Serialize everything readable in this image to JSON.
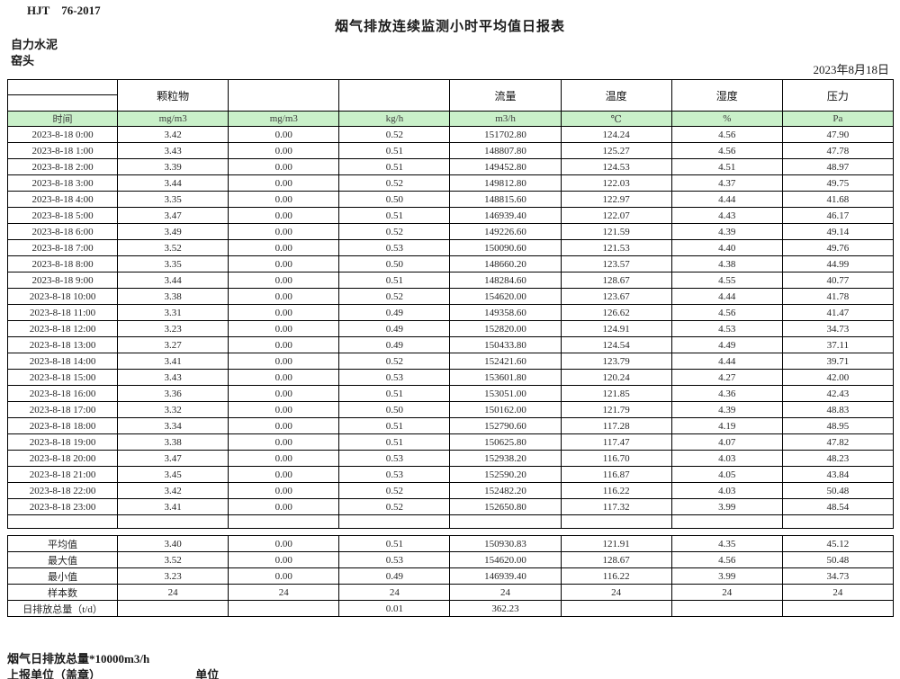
{
  "page": {
    "doc_code": "HJT 76-2017",
    "title": "烟气排放连续监测小时平均值日报表",
    "company": "自力水泥",
    "location": "窑头",
    "date": "2023年8月18日"
  },
  "colors": {
    "header_fill": "#c9f0c9",
    "border": "#000000"
  },
  "table": {
    "group_headers": [
      "",
      "颗粒物",
      "",
      "",
      "流量",
      "温度",
      "湿度",
      "压力"
    ],
    "units": [
      "时间",
      "mg/m3",
      "mg/m3",
      "kg/h",
      "m3/h",
      "℃",
      "%",
      "Pa"
    ],
    "rows": [
      [
        "2023-8-18 0:00",
        "3.42",
        "0.00",
        "0.52",
        "151702.80",
        "124.24",
        "4.56",
        "47.90"
      ],
      [
        "2023-8-18 1:00",
        "3.43",
        "0.00",
        "0.51",
        "148807.80",
        "125.27",
        "4.56",
        "47.78"
      ],
      [
        "2023-8-18 2:00",
        "3.39",
        "0.00",
        "0.51",
        "149452.80",
        "124.53",
        "4.51",
        "48.97"
      ],
      [
        "2023-8-18 3:00",
        "3.44",
        "0.00",
        "0.52",
        "149812.80",
        "122.03",
        "4.37",
        "49.75"
      ],
      [
        "2023-8-18 4:00",
        "3.35",
        "0.00",
        "0.50",
        "148815.60",
        "122.97",
        "4.44",
        "41.68"
      ],
      [
        "2023-8-18 5:00",
        "3.47",
        "0.00",
        "0.51",
        "146939.40",
        "122.07",
        "4.43",
        "46.17"
      ],
      [
        "2023-8-18 6:00",
        "3.49",
        "0.00",
        "0.52",
        "149226.60",
        "121.59",
        "4.39",
        "49.14"
      ],
      [
        "2023-8-18 7:00",
        "3.52",
        "0.00",
        "0.53",
        "150090.60",
        "121.53",
        "4.40",
        "49.76"
      ],
      [
        "2023-8-18 8:00",
        "3.35",
        "0.00",
        "0.50",
        "148660.20",
        "123.57",
        "4.38",
        "44.99"
      ],
      [
        "2023-8-18 9:00",
        "3.44",
        "0.00",
        "0.51",
        "148284.60",
        "128.67",
        "4.55",
        "40.77"
      ],
      [
        "2023-8-18 10:00",
        "3.38",
        "0.00",
        "0.52",
        "154620.00",
        "123.67",
        "4.44",
        "41.78"
      ],
      [
        "2023-8-18 11:00",
        "3.31",
        "0.00",
        "0.49",
        "149358.60",
        "126.62",
        "4.56",
        "41.47"
      ],
      [
        "2023-8-18 12:00",
        "3.23",
        "0.00",
        "0.49",
        "152820.00",
        "124.91",
        "4.53",
        "34.73"
      ],
      [
        "2023-8-18 13:00",
        "3.27",
        "0.00",
        "0.49",
        "150433.80",
        "124.54",
        "4.49",
        "37.11"
      ],
      [
        "2023-8-18 14:00",
        "3.41",
        "0.00",
        "0.52",
        "152421.60",
        "123.79",
        "4.44",
        "39.71"
      ],
      [
        "2023-8-18 15:00",
        "3.43",
        "0.00",
        "0.53",
        "153601.80",
        "120.24",
        "4.27",
        "42.00"
      ],
      [
        "2023-8-18 16:00",
        "3.36",
        "0.00",
        "0.51",
        "153051.00",
        "121.85",
        "4.36",
        "42.43"
      ],
      [
        "2023-8-18 17:00",
        "3.32",
        "0.00",
        "0.50",
        "150162.00",
        "121.79",
        "4.39",
        "48.83"
      ],
      [
        "2023-8-18 18:00",
        "3.34",
        "0.00",
        "0.51",
        "152790.60",
        "117.28",
        "4.19",
        "48.95"
      ],
      [
        "2023-8-18 19:00",
        "3.38",
        "0.00",
        "0.51",
        "150625.80",
        "117.47",
        "4.07",
        "47.82"
      ],
      [
        "2023-8-18 20:00",
        "3.47",
        "0.00",
        "0.53",
        "152938.20",
        "116.70",
        "4.03",
        "48.23"
      ],
      [
        "2023-8-18 21:00",
        "3.45",
        "0.00",
        "0.53",
        "152590.20",
        "116.87",
        "4.05",
        "43.84"
      ],
      [
        "2023-8-18 22:00",
        "3.42",
        "0.00",
        "0.52",
        "152482.20",
        "116.22",
        "4.03",
        "50.48"
      ],
      [
        "2023-8-18 23:00",
        "3.41",
        "0.00",
        "0.52",
        "152650.80",
        "117.32",
        "3.99",
        "48.54"
      ]
    ],
    "summary_rows": [
      [
        "平均值",
        "3.40",
        "0.00",
        "0.51",
        "150930.83",
        "121.91",
        "4.35",
        "45.12"
      ],
      [
        "最大值",
        "3.52",
        "0.00",
        "0.53",
        "154620.00",
        "128.67",
        "4.56",
        "50.48"
      ],
      [
        "最小值",
        "3.23",
        "0.00",
        "0.49",
        "146939.40",
        "116.22",
        "3.99",
        "34.73"
      ],
      [
        "样本数",
        "24",
        "24",
        "24",
        "24",
        "24",
        "24",
        "24"
      ],
      [
        "日排放总量（t/d）",
        "",
        "",
        "0.01",
        "362.23",
        "",
        "",
        ""
      ]
    ]
  },
  "footer": {
    "note": "烟气日排放总量*10000m3/h",
    "report_unit_label": "上报单位（盖章）",
    "unit_label": "单位"
  }
}
